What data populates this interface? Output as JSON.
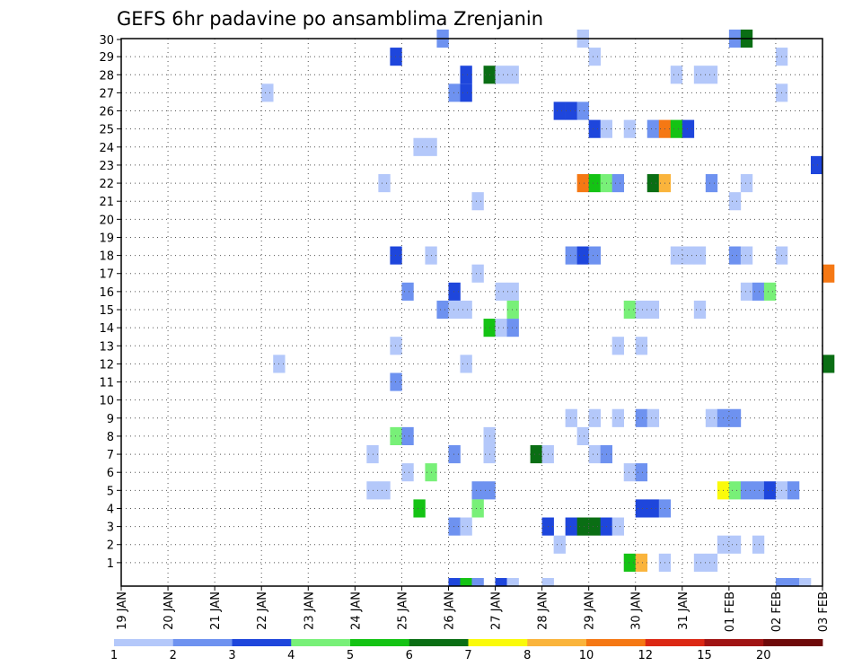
{
  "chart_data": {
    "type": "heatmap",
    "title": "GEFS 6hr padavine po ansamblima Zrenjanin",
    "xlabel": "",
    "ylabel": "",
    "x_tick_labels": [
      "19 JAN",
      "20 JAN",
      "21 JAN",
      "22 JAN",
      "23 JAN",
      "24 JAN",
      "25 JAN",
      "26 JAN",
      "27 JAN",
      "28 JAN",
      "29 JAN",
      "30 JAN",
      "31 JAN",
      "01 FEB",
      "02 FEB",
      "03 FEB"
    ],
    "y_tick_labels": [
      "1",
      "2",
      "3",
      "4",
      "5",
      "6",
      "7",
      "8",
      "9",
      "10",
      "11",
      "12",
      "13",
      "14",
      "15",
      "16",
      "17",
      "18",
      "19",
      "20",
      "21",
      "22",
      "23",
      "24",
      "25",
      "26",
      "27",
      "28",
      "29",
      "30"
    ],
    "ylim": [
      0,
      30
    ],
    "grid": true,
    "time_step_hours": 6,
    "legend": {
      "placement": "bottom",
      "thresholds": [
        "1",
        "2",
        "3",
        "4",
        "5",
        "6",
        "7",
        "8",
        "10",
        "12",
        "15",
        "20"
      ],
      "colors": [
        "#b4c8fa",
        "#6e92f0",
        "#1e46dc",
        "#78f078",
        "#14c314",
        "#0a6e14",
        "#fafa0a",
        "#fab43c",
        "#f57814",
        "#dc2814",
        "#a01414",
        "#6e0a0a"
      ]
    },
    "cells": [
      {
        "member": 30,
        "step": 27,
        "bin": 2
      },
      {
        "member": 30,
        "step": 39,
        "bin": 1
      },
      {
        "member": 30,
        "step": 52,
        "bin": 2
      },
      {
        "member": 30,
        "step": 53,
        "bin": 6
      },
      {
        "member": 29,
        "step": 23,
        "bin": 3
      },
      {
        "member": 29,
        "step": 40,
        "bin": 1
      },
      {
        "member": 29,
        "step": 56,
        "bin": 1
      },
      {
        "member": 28,
        "step": 29,
        "bin": 3
      },
      {
        "member": 28,
        "step": 31,
        "bin": 6
      },
      {
        "member": 28,
        "step": 32,
        "bin": 1
      },
      {
        "member": 28,
        "step": 33,
        "bin": 1
      },
      {
        "member": 28,
        "step": 47,
        "bin": 1
      },
      {
        "member": 28,
        "step": 49,
        "bin": 1
      },
      {
        "member": 28,
        "step": 50,
        "bin": 1
      },
      {
        "member": 27,
        "step": 12,
        "bin": 1
      },
      {
        "member": 27,
        "step": 28,
        "bin": 2
      },
      {
        "member": 27,
        "step": 29,
        "bin": 3
      },
      {
        "member": 27,
        "step": 56,
        "bin": 1
      },
      {
        "member": 26,
        "step": 37,
        "bin": 3
      },
      {
        "member": 26,
        "step": 38,
        "bin": 3
      },
      {
        "member": 26,
        "step": 39,
        "bin": 2
      },
      {
        "member": 25,
        "step": 40,
        "bin": 3
      },
      {
        "member": 25,
        "step": 41,
        "bin": 1
      },
      {
        "member": 25,
        "step": 43,
        "bin": 1
      },
      {
        "member": 25,
        "step": 45,
        "bin": 2
      },
      {
        "member": 25,
        "step": 46,
        "bin": 9
      },
      {
        "member": 25,
        "step": 47,
        "bin": 5
      },
      {
        "member": 25,
        "step": 48,
        "bin": 3
      },
      {
        "member": 24,
        "step": 25,
        "bin": 1
      },
      {
        "member": 24,
        "step": 26,
        "bin": 1
      },
      {
        "member": 23,
        "step": 59,
        "bin": 3
      },
      {
        "member": 22,
        "step": 22,
        "bin": 1
      },
      {
        "member": 22,
        "step": 39,
        "bin": 9
      },
      {
        "member": 22,
        "step": 40,
        "bin": 5
      },
      {
        "member": 22,
        "step": 41,
        "bin": 4
      },
      {
        "member": 22,
        "step": 42,
        "bin": 2
      },
      {
        "member": 22,
        "step": 45,
        "bin": 6
      },
      {
        "member": 22,
        "step": 46,
        "bin": 8
      },
      {
        "member": 22,
        "step": 50,
        "bin": 2
      },
      {
        "member": 22,
        "step": 53,
        "bin": 1
      },
      {
        "member": 21,
        "step": 30,
        "bin": 1
      },
      {
        "member": 21,
        "step": 52,
        "bin": 1
      },
      {
        "member": 18,
        "step": 23,
        "bin": 3
      },
      {
        "member": 18,
        "step": 26,
        "bin": 1
      },
      {
        "member": 18,
        "step": 38,
        "bin": 2
      },
      {
        "member": 18,
        "step": 39,
        "bin": 3
      },
      {
        "member": 18,
        "step": 40,
        "bin": 2
      },
      {
        "member": 18,
        "step": 47,
        "bin": 1
      },
      {
        "member": 18,
        "step": 48,
        "bin": 1
      },
      {
        "member": 18,
        "step": 49,
        "bin": 1
      },
      {
        "member": 18,
        "step": 52,
        "bin": 2
      },
      {
        "member": 18,
        "step": 53,
        "bin": 1
      },
      {
        "member": 18,
        "step": 56,
        "bin": 1
      },
      {
        "member": 17,
        "step": 30,
        "bin": 1
      },
      {
        "member": 17,
        "step": 60,
        "bin": 9
      },
      {
        "member": 16,
        "step": 24,
        "bin": 2
      },
      {
        "member": 16,
        "step": 28,
        "bin": 3
      },
      {
        "member": 16,
        "step": 32,
        "bin": 1
      },
      {
        "member": 16,
        "step": 33,
        "bin": 1
      },
      {
        "member": 16,
        "step": 53,
        "bin": 1
      },
      {
        "member": 16,
        "step": 54,
        "bin": 2
      },
      {
        "member": 16,
        "step": 55,
        "bin": 4
      },
      {
        "member": 15,
        "step": 27,
        "bin": 2
      },
      {
        "member": 15,
        "step": 28,
        "bin": 1
      },
      {
        "member": 15,
        "step": 29,
        "bin": 1
      },
      {
        "member": 15,
        "step": 33,
        "bin": 4
      },
      {
        "member": 15,
        "step": 43,
        "bin": 4
      },
      {
        "member": 15,
        "step": 44,
        "bin": 1
      },
      {
        "member": 15,
        "step": 45,
        "bin": 1
      },
      {
        "member": 15,
        "step": 49,
        "bin": 1
      },
      {
        "member": 14,
        "step": 31,
        "bin": 5
      },
      {
        "member": 14,
        "step": 32,
        "bin": 1
      },
      {
        "member": 14,
        "step": 33,
        "bin": 2
      },
      {
        "member": 13,
        "step": 23,
        "bin": 1
      },
      {
        "member": 13,
        "step": 42,
        "bin": 1
      },
      {
        "member": 13,
        "step": 44,
        "bin": 1
      },
      {
        "member": 12,
        "step": 13,
        "bin": 1
      },
      {
        "member": 12,
        "step": 29,
        "bin": 1
      },
      {
        "member": 12,
        "step": 60,
        "bin": 6
      },
      {
        "member": 11,
        "step": 23,
        "bin": 2
      },
      {
        "member": 9,
        "step": 38,
        "bin": 1
      },
      {
        "member": 9,
        "step": 40,
        "bin": 1
      },
      {
        "member": 9,
        "step": 42,
        "bin": 1
      },
      {
        "member": 9,
        "step": 44,
        "bin": 2
      },
      {
        "member": 9,
        "step": 45,
        "bin": 1
      },
      {
        "member": 9,
        "step": 50,
        "bin": 1
      },
      {
        "member": 9,
        "step": 51,
        "bin": 2
      },
      {
        "member": 9,
        "step": 52,
        "bin": 2
      },
      {
        "member": 8,
        "step": 23,
        "bin": 4
      },
      {
        "member": 8,
        "step": 24,
        "bin": 2
      },
      {
        "member": 8,
        "step": 31,
        "bin": 1
      },
      {
        "member": 8,
        "step": 39,
        "bin": 1
      },
      {
        "member": 7,
        "step": 21,
        "bin": 1
      },
      {
        "member": 7,
        "step": 28,
        "bin": 2
      },
      {
        "member": 7,
        "step": 31,
        "bin": 1
      },
      {
        "member": 7,
        "step": 35,
        "bin": 6
      },
      {
        "member": 7,
        "step": 36,
        "bin": 1
      },
      {
        "member": 7,
        "step": 40,
        "bin": 1
      },
      {
        "member": 7,
        "step": 41,
        "bin": 2
      },
      {
        "member": 6,
        "step": 24,
        "bin": 1
      },
      {
        "member": 6,
        "step": 26,
        "bin": 4
      },
      {
        "member": 6,
        "step": 43,
        "bin": 1
      },
      {
        "member": 6,
        "step": 44,
        "bin": 2
      },
      {
        "member": 5,
        "step": 21,
        "bin": 1
      },
      {
        "member": 5,
        "step": 22,
        "bin": 1
      },
      {
        "member": 5,
        "step": 30,
        "bin": 2
      },
      {
        "member": 5,
        "step": 31,
        "bin": 2
      },
      {
        "member": 5,
        "step": 51,
        "bin": 7
      },
      {
        "member": 5,
        "step": 52,
        "bin": 4
      },
      {
        "member": 5,
        "step": 53,
        "bin": 2
      },
      {
        "member": 5,
        "step": 54,
        "bin": 2
      },
      {
        "member": 5,
        "step": 55,
        "bin": 3
      },
      {
        "member": 5,
        "step": 56,
        "bin": 1
      },
      {
        "member": 5,
        "step": 57,
        "bin": 2
      },
      {
        "member": 4,
        "step": 25,
        "bin": 5
      },
      {
        "member": 4,
        "step": 30,
        "bin": 4
      },
      {
        "member": 4,
        "step": 44,
        "bin": 3
      },
      {
        "member": 4,
        "step": 45,
        "bin": 3
      },
      {
        "member": 4,
        "step": 46,
        "bin": 2
      },
      {
        "member": 3,
        "step": 28,
        "bin": 2
      },
      {
        "member": 3,
        "step": 29,
        "bin": 1
      },
      {
        "member": 3,
        "step": 36,
        "bin": 3
      },
      {
        "member": 3,
        "step": 38,
        "bin": 3
      },
      {
        "member": 3,
        "step": 39,
        "bin": 6
      },
      {
        "member": 3,
        "step": 40,
        "bin": 6
      },
      {
        "member": 3,
        "step": 41,
        "bin": 3
      },
      {
        "member": 3,
        "step": 42,
        "bin": 1
      },
      {
        "member": 2,
        "step": 37,
        "bin": 1
      },
      {
        "member": 2,
        "step": 51,
        "bin": 1
      },
      {
        "member": 2,
        "step": 52,
        "bin": 1
      },
      {
        "member": 2,
        "step": 54,
        "bin": 1
      },
      {
        "member": 1,
        "step": 43,
        "bin": 5
      },
      {
        "member": 1,
        "step": 44,
        "bin": 8
      },
      {
        "member": 1,
        "step": 46,
        "bin": 1
      },
      {
        "member": 1,
        "step": 49,
        "bin": 1
      },
      {
        "member": 1,
        "step": 50,
        "bin": 1
      },
      {
        "member": 0,
        "step": 28,
        "bin": 3
      },
      {
        "member": 0,
        "step": 29,
        "bin": 5
      },
      {
        "member": 0,
        "step": 30,
        "bin": 2
      },
      {
        "member": 0,
        "step": 32,
        "bin": 3
      },
      {
        "member": 0,
        "step": 33,
        "bin": 1
      },
      {
        "member": 0,
        "step": 36,
        "bin": 1
      },
      {
        "member": 0,
        "step": 56,
        "bin": 2
      },
      {
        "member": 0,
        "step": 57,
        "bin": 2
      },
      {
        "member": 0,
        "step": 58,
        "bin": 1
      }
    ]
  }
}
